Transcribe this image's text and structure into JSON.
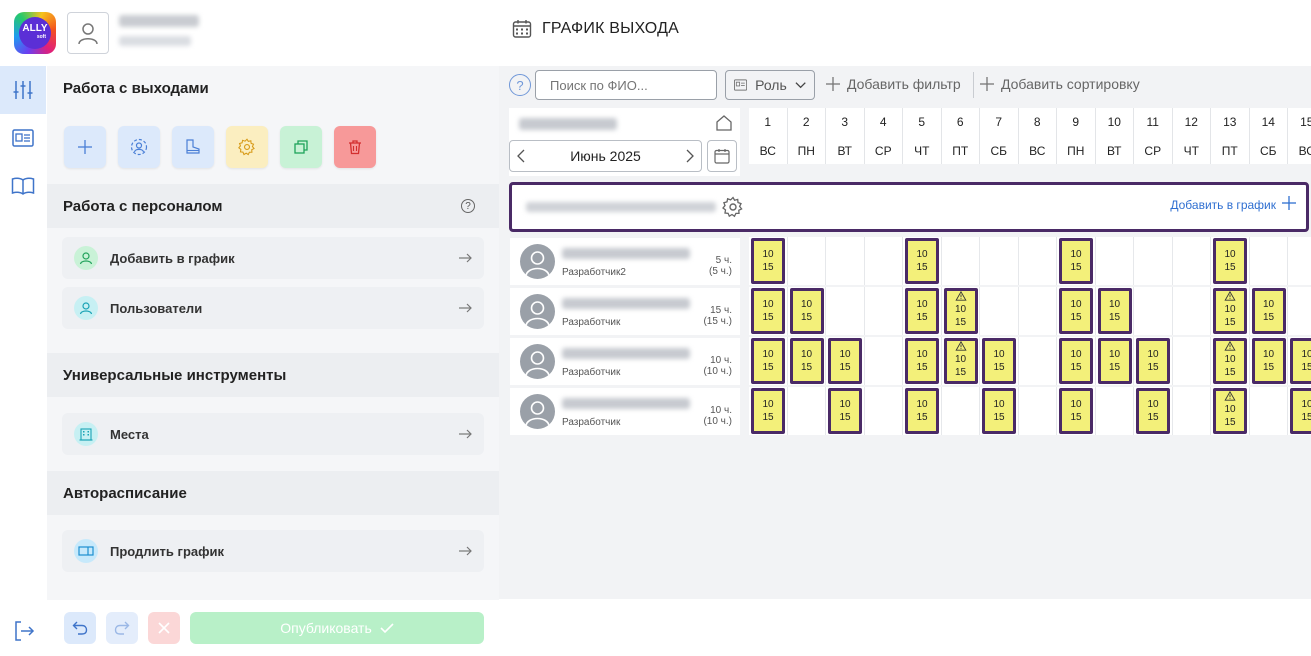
{
  "app": {
    "title": "ГРАФИК ВЫХОДА",
    "logo_text": "ALLY",
    "logo_sub": "soft"
  },
  "side": {
    "section_shifts": "Работа с выходами",
    "tools": [
      {
        "name": "add-shift-button",
        "icon": "plus-icon",
        "bg": "#dce9fb",
        "color": "#4a7fd6"
      },
      {
        "name": "assign-users-button",
        "icon": "users-circle-icon",
        "bg": "#dce9fb",
        "color": "#4a7fd6"
      },
      {
        "name": "shoe-button",
        "icon": "boot-icon",
        "bg": "#dce9fb",
        "color": "#4a7fd6"
      },
      {
        "name": "settings-tool-button",
        "icon": "gear-icon",
        "bg": "#fbeec0",
        "color": "#d79a18"
      },
      {
        "name": "copy-button",
        "icon": "copy-icon",
        "bg": "#c8f2d6",
        "color": "#1ea35a"
      },
      {
        "name": "delete-button",
        "icon": "trash-icon",
        "bg": "#f79999",
        "color": "#d32f2f"
      }
    ],
    "section_staff": "Работа с персоналом",
    "staff_items": [
      {
        "label": "Добавить в график",
        "icon": "user-add-icon",
        "bg": "#c9f2d7",
        "color": "#23a35c"
      },
      {
        "label": "Пользователи",
        "icon": "user-icon",
        "bg": "#c7f0f3",
        "color": "#1aa3b5"
      }
    ],
    "section_tools": "Универсальные инструменты",
    "tools_items": [
      {
        "label": "Места",
        "icon": "building-icon",
        "bg": "#c7f0f3",
        "color": "#1aa3b5"
      }
    ],
    "section_auto": "Авторасписание",
    "auto_items": [
      {
        "label": "Продлить график",
        "icon": "extend-icon",
        "bg": "#c7e9fb",
        "color": "#1c8fd0"
      }
    ],
    "publish_label": "Опубликовать"
  },
  "toolbar": {
    "help": "?",
    "search_placeholder": "Поиск по ФИО...",
    "role_label": "Роль",
    "add_filter": "Добавить фильтр",
    "add_sort": "Добавить сортировку"
  },
  "calendar": {
    "month": "Июнь 2025",
    "days": [
      {
        "n": "1",
        "w": "ВС"
      },
      {
        "n": "2",
        "w": "ПН"
      },
      {
        "n": "3",
        "w": "ВТ"
      },
      {
        "n": "4",
        "w": "СР"
      },
      {
        "n": "5",
        "w": "ЧТ"
      },
      {
        "n": "6",
        "w": "ПТ"
      },
      {
        "n": "7",
        "w": "СБ"
      },
      {
        "n": "8",
        "w": "ВС"
      },
      {
        "n": "9",
        "w": "ПН"
      },
      {
        "n": "10",
        "w": "ВТ"
      },
      {
        "n": "11",
        "w": "СР"
      },
      {
        "n": "12",
        "w": "ЧТ"
      },
      {
        "n": "13",
        "w": "ПТ"
      },
      {
        "n": "14",
        "w": "СБ"
      },
      {
        "n": "15",
        "w": "ВС"
      }
    ]
  },
  "group": {
    "add_label": "Добавить в график"
  },
  "shift_top": "10",
  "shift_bottom": "15",
  "employees": [
    {
      "role": "Разработчик2",
      "hours": "5 ч.",
      "hours_sub": "(5 ч.)",
      "shifts": [
        0,
        4,
        8,
        12
      ],
      "warn": []
    },
    {
      "role": "Разработчик",
      "hours": "15 ч.",
      "hours_sub": "(15 ч.)",
      "shifts": [
        0,
        1,
        4,
        5,
        8,
        9,
        12,
        13
      ],
      "warn": [
        5,
        12
      ]
    },
    {
      "role": "Разработчик",
      "hours": "10 ч.",
      "hours_sub": "(10 ч.)",
      "shifts": [
        0,
        1,
        2,
        4,
        5,
        6,
        8,
        9,
        10,
        12,
        13,
        14
      ],
      "warn": [
        5,
        12
      ]
    },
    {
      "role": "Разработчик",
      "hours": "10 ч.",
      "hours_sub": "(10 ч.)",
      "shifts": [
        0,
        2,
        4,
        6,
        8,
        10,
        12,
        14
      ],
      "warn": [
        12
      ]
    }
  ]
}
